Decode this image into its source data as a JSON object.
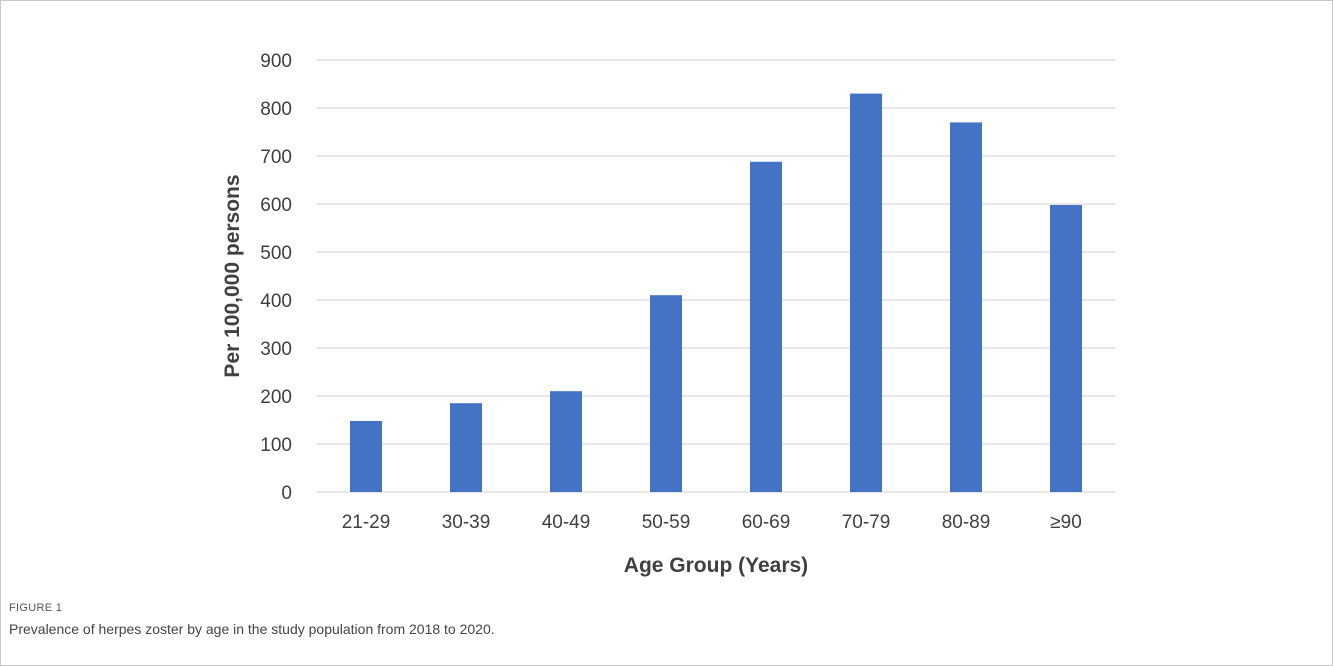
{
  "figure": {
    "label": "FIGURE 1",
    "caption": "Prevalence of herpes zoster by age in the study population from 2018 to 2020."
  },
  "colors": {
    "bar": "#4472c4",
    "grid": "#d9d9d9",
    "text": "#404040"
  },
  "chart_data": {
    "type": "bar",
    "title": "",
    "xlabel": "Age Group (Years)",
    "ylabel": "Per 100,000 persons",
    "categories": [
      "21-29",
      "30-39",
      "40-49",
      "50-59",
      "60-69",
      "70-79",
      "80-89",
      "≥90"
    ],
    "values": [
      148,
      185,
      210,
      410,
      688,
      830,
      770,
      598
    ],
    "ylim": [
      0,
      900
    ],
    "yticks": [
      "0",
      "100",
      "200",
      "300",
      "400",
      "500",
      "600",
      "700",
      "800",
      "900"
    ],
    "grid": true,
    "legend": "none"
  }
}
